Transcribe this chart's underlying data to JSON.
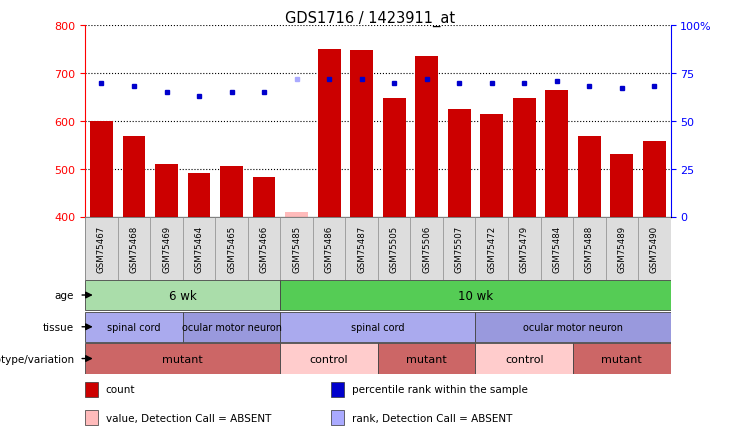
{
  "title": "GDS1716 / 1423911_at",
  "samples": [
    "GSM75467",
    "GSM75468",
    "GSM75469",
    "GSM75464",
    "GSM75465",
    "GSM75466",
    "GSM75485",
    "GSM75486",
    "GSM75487",
    "GSM75505",
    "GSM75506",
    "GSM75507",
    "GSM75472",
    "GSM75479",
    "GSM75484",
    "GSM75488",
    "GSM75489",
    "GSM75490"
  ],
  "counts": [
    600,
    568,
    510,
    490,
    505,
    482,
    410,
    750,
    749,
    648,
    735,
    625,
    614,
    647,
    665,
    568,
    530,
    558
  ],
  "absent_idx": [
    6
  ],
  "percentile_ranks": [
    70,
    68,
    65,
    63,
    65,
    65,
    72,
    72,
    72,
    70,
    72,
    70,
    70,
    70,
    71,
    68,
    67,
    68
  ],
  "ylim_left": [
    400,
    800
  ],
  "ylim_right": [
    0,
    100
  ],
  "yticks_left": [
    400,
    500,
    600,
    700,
    800
  ],
  "yticks_right": [
    0,
    25,
    50,
    75,
    100
  ],
  "bar_color": "#cc0000",
  "absent_bar_color": "#ffbbbb",
  "dot_color": "#0000cc",
  "absent_dot_color": "#aaaaff",
  "age_groups": [
    {
      "label": "6 wk",
      "start": 0,
      "end": 6,
      "color": "#aaddaa"
    },
    {
      "label": "10 wk",
      "start": 6,
      "end": 18,
      "color": "#55cc55"
    }
  ],
  "tissue_groups": [
    {
      "label": "spinal cord",
      "start": 0,
      "end": 3,
      "color": "#aaaaee"
    },
    {
      "label": "ocular motor neuron",
      "start": 3,
      "end": 6,
      "color": "#9999dd"
    },
    {
      "label": "spinal cord",
      "start": 6,
      "end": 12,
      "color": "#aaaaee"
    },
    {
      "label": "ocular motor neuron",
      "start": 12,
      "end": 18,
      "color": "#9999dd"
    }
  ],
  "genotype_groups": [
    {
      "label": "mutant",
      "start": 0,
      "end": 6,
      "color": "#cc6666"
    },
    {
      "label": "control",
      "start": 6,
      "end": 9,
      "color": "#ffcccc"
    },
    {
      "label": "mutant",
      "start": 9,
      "end": 12,
      "color": "#cc6666"
    },
    {
      "label": "control",
      "start": 12,
      "end": 15,
      "color": "#ffcccc"
    },
    {
      "label": "mutant",
      "start": 15,
      "end": 18,
      "color": "#cc6666"
    }
  ],
  "legend_items": [
    {
      "label": "count",
      "color": "#cc0000"
    },
    {
      "label": "percentile rank within the sample",
      "color": "#0000cc"
    },
    {
      "label": "value, Detection Call = ABSENT",
      "color": "#ffbbbb"
    },
    {
      "label": "rank, Detection Call = ABSENT",
      "color": "#aaaaff"
    }
  ],
  "row_labels": [
    "age",
    "tissue",
    "genotype/variation"
  ]
}
